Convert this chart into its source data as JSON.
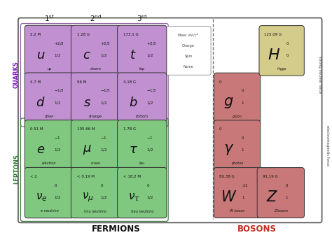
{
  "purple_fill": "#c090d0",
  "purple_edge": "#9060a0",
  "green_fill": "#80c880",
  "green_edge": "#408040",
  "red_fill": "#c87878",
  "red_edge": "#905050",
  "higgs_fill": "#d4cc8a",
  "higgs_edge": "#a09040",
  "quarks_color": "#8020c0",
  "leptons_color": "#308030",
  "bosons_color": "#c03020",
  "particles": [
    {
      "symbol": "u",
      "name": "up",
      "mass": "2.2 M",
      "charge": "+2/3",
      "spin": "1/2",
      "col": 0,
      "row": 0,
      "type": "quark"
    },
    {
      "symbol": "c",
      "name": "charm",
      "mass": "1.28 G",
      "charge": "+2/3",
      "spin": "1/2",
      "col": 1,
      "row": 0,
      "type": "quark"
    },
    {
      "symbol": "t",
      "name": "top",
      "mass": "173.1 G",
      "charge": "+2/3",
      "spin": "1/2",
      "col": 2,
      "row": 0,
      "type": "quark"
    },
    {
      "symbol": "d",
      "name": "down",
      "mass": "4.7 M",
      "charge": "-1/3",
      "spin": "1/2",
      "col": 0,
      "row": 1,
      "type": "quark"
    },
    {
      "symbol": "s",
      "name": "strange",
      "mass": "96 M",
      "charge": "-1/3",
      "spin": "1/2",
      "col": 1,
      "row": 1,
      "type": "quark"
    },
    {
      "symbol": "b",
      "name": "bottom",
      "mass": "4.18 G",
      "charge": "-1/3",
      "spin": "1/2",
      "col": 2,
      "row": 1,
      "type": "quark"
    },
    {
      "symbol": "e",
      "name": "electron",
      "mass": "0.51 M",
      "charge": "-1",
      "spin": "1/2",
      "col": 0,
      "row": 2,
      "type": "lepton"
    },
    {
      "symbol": "\\mu",
      "name": "muon",
      "mass": "105.66 M",
      "charge": "-1",
      "spin": "1/2",
      "col": 1,
      "row": 2,
      "type": "lepton"
    },
    {
      "symbol": "\\tau",
      "name": "tau",
      "mass": "1.78 G",
      "charge": "-1",
      "spin": "1/2",
      "col": 2,
      "row": 2,
      "type": "lepton"
    },
    {
      "symbol": "\\nu_e",
      "name": "e neutrino",
      "mass": "< 2",
      "charge": "0",
      "spin": "1/2",
      "col": 0,
      "row": 3,
      "type": "neutrino"
    },
    {
      "symbol": "\\nu_{\\mu}",
      "name": "\\mu neutrino",
      "mass": "< 0.19 M",
      "charge": "0",
      "spin": "1/2",
      "col": 1,
      "row": 3,
      "type": "neutrino"
    },
    {
      "symbol": "\\nu_{\\tau}",
      "name": "\\tau neutrino",
      "mass": "< 18.2 M",
      "charge": "0",
      "spin": "1/2",
      "col": 2,
      "row": 3,
      "type": "neutrino"
    },
    {
      "symbol": "g",
      "name": "gluon",
      "mass": "0",
      "charge": "0",
      "spin": "1",
      "col": 3,
      "row": 1,
      "type": "boson"
    },
    {
      "symbol": "\\gamma",
      "name": "photon",
      "mass": "0",
      "charge": "0",
      "spin": "1",
      "col": 3,
      "row": 2,
      "type": "boson"
    },
    {
      "symbol": "W",
      "name": "W boson",
      "mass": "80.38 G",
      "charge": "\\pm1",
      "spin": "1",
      "col": 3,
      "row": 3,
      "type": "boson_w"
    },
    {
      "symbol": "Z",
      "name": "Z boson",
      "mass": "91.19 G",
      "charge": "0",
      "spin": "1",
      "col": 4,
      "row": 3,
      "type": "boson_z"
    },
    {
      "symbol": "H",
      "name": "higgs",
      "mass": "125.09 G",
      "charge": "0",
      "spin": "0",
      "col": 4,
      "row": 0,
      "type": "higgs"
    }
  ]
}
